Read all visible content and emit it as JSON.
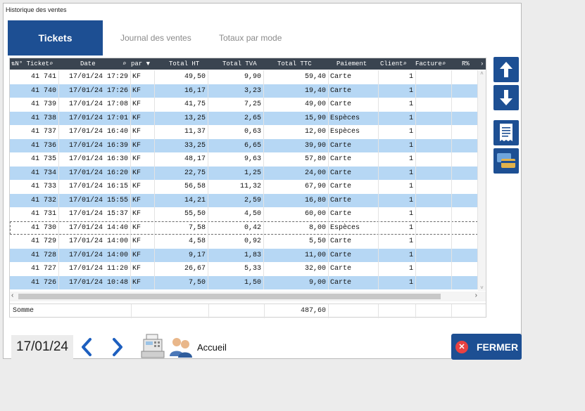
{
  "window": {
    "title": "Historique des ventes"
  },
  "tabs": [
    {
      "label": "Tickets",
      "active": true
    },
    {
      "label": "Journal des ventes",
      "active": false
    },
    {
      "label": "Totaux par mode",
      "active": false
    }
  ],
  "table": {
    "columns": [
      "N° Ticket",
      "Date",
      "par",
      "Total HT",
      "Total TVA",
      "Total TTC",
      "Paiement",
      "Client",
      "Facture",
      "R%"
    ],
    "rows": [
      [
        "41 741",
        "17/01/24 17:29",
        "KF",
        "49,50",
        "9,90",
        "59,40",
        "Carte",
        "1",
        "",
        ""
      ],
      [
        "41 740",
        "17/01/24 17:26",
        "KF",
        "16,17",
        "3,23",
        "19,40",
        "Carte",
        "1",
        "",
        ""
      ],
      [
        "41 739",
        "17/01/24 17:08",
        "KF",
        "41,75",
        "7,25",
        "49,00",
        "Carte",
        "1",
        "",
        ""
      ],
      [
        "41 738",
        "17/01/24 17:01",
        "KF",
        "13,25",
        "2,65",
        "15,90",
        "Espèces",
        "1",
        "",
        ""
      ],
      [
        "41 737",
        "17/01/24 16:40",
        "KF",
        "11,37",
        "0,63",
        "12,00",
        "Espèces",
        "1",
        "",
        ""
      ],
      [
        "41 736",
        "17/01/24 16:39",
        "KF",
        "33,25",
        "6,65",
        "39,90",
        "Carte",
        "1",
        "",
        ""
      ],
      [
        "41 735",
        "17/01/24 16:30",
        "KF",
        "48,17",
        "9,63",
        "57,80",
        "Carte",
        "1",
        "",
        ""
      ],
      [
        "41 734",
        "17/01/24 16:20",
        "KF",
        "22,75",
        "1,25",
        "24,00",
        "Carte",
        "1",
        "",
        ""
      ],
      [
        "41 733",
        "17/01/24 16:15",
        "KF",
        "56,58",
        "11,32",
        "67,90",
        "Carte",
        "1",
        "",
        ""
      ],
      [
        "41 732",
        "17/01/24 15:55",
        "KF",
        "14,21",
        "2,59",
        "16,80",
        "Carte",
        "1",
        "",
        ""
      ],
      [
        "41 731",
        "17/01/24 15:37",
        "KF",
        "55,50",
        "4,50",
        "60,00",
        "Carte",
        "1",
        "",
        ""
      ],
      [
        "41 730",
        "17/01/24 14:40",
        "KF",
        "7,58",
        "0,42",
        "8,00",
        "Espèces",
        "1",
        "",
        ""
      ],
      [
        "41 729",
        "17/01/24 14:00",
        "KF",
        "4,58",
        "0,92",
        "5,50",
        "Carte",
        "1",
        "",
        ""
      ],
      [
        "41 728",
        "17/01/24 14:00",
        "KF",
        "9,17",
        "1,83",
        "11,00",
        "Carte",
        "1",
        "",
        ""
      ],
      [
        "41 727",
        "17/01/24 11:20",
        "KF",
        "26,67",
        "5,33",
        "32,00",
        "Carte",
        "1",
        "",
        ""
      ],
      [
        "41 726",
        "17/01/24 10:48",
        "KF",
        "7,50",
        "1,50",
        "9,00",
        "Carte",
        "1",
        "",
        ""
      ]
    ],
    "selected_index": 11,
    "sum_label": "Somme",
    "sum_ttc": "487,60"
  },
  "footer": {
    "date": "17/01/24",
    "accueil_label": "Accueil",
    "fermer_label": "FERMER"
  },
  "colors": {
    "accent": "#1d4f93",
    "row_alt": "#b6d7f4",
    "close_red": "#e94141"
  }
}
